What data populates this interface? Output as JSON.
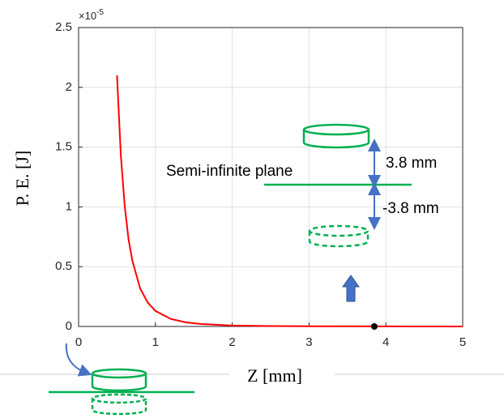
{
  "chart_data": {
    "type": "line",
    "x_label": "Z [mm]",
    "y_label": "P. E. [J]",
    "y_multiplier_base": "×10",
    "y_multiplier_exponent": "-5",
    "xlim": [
      0,
      5
    ],
    "xticks": [
      0,
      1,
      2,
      3,
      4,
      5
    ],
    "ylim": [
      0,
      2.5
    ],
    "yticks": [
      0,
      0.5,
      1,
      1.5,
      2,
      2.5
    ],
    "grid": true,
    "x": [
      0.5,
      0.55,
      0.6,
      0.65,
      0.7,
      0.8,
      0.9,
      1,
      1.2,
      1.4,
      1.6,
      2,
      2.5,
      3,
      4,
      5
    ],
    "series": [
      {
        "color": "#ff0000",
        "values": [
          2.1,
          1.43,
          1.01,
          0.73,
          0.55,
          0.32,
          0.2,
          0.13,
          0.063,
          0.034,
          0.02,
          0.008,
          0.003,
          0.002,
          0.0005,
          0.0002
        ]
      }
    ],
    "marker": {
      "x": 3.85,
      "y": 0,
      "color": "#000000"
    },
    "annotations": {
      "plane": "Semi-infinite plane",
      "above": "3.8 mm",
      "below": "-3.8 mm"
    }
  }
}
